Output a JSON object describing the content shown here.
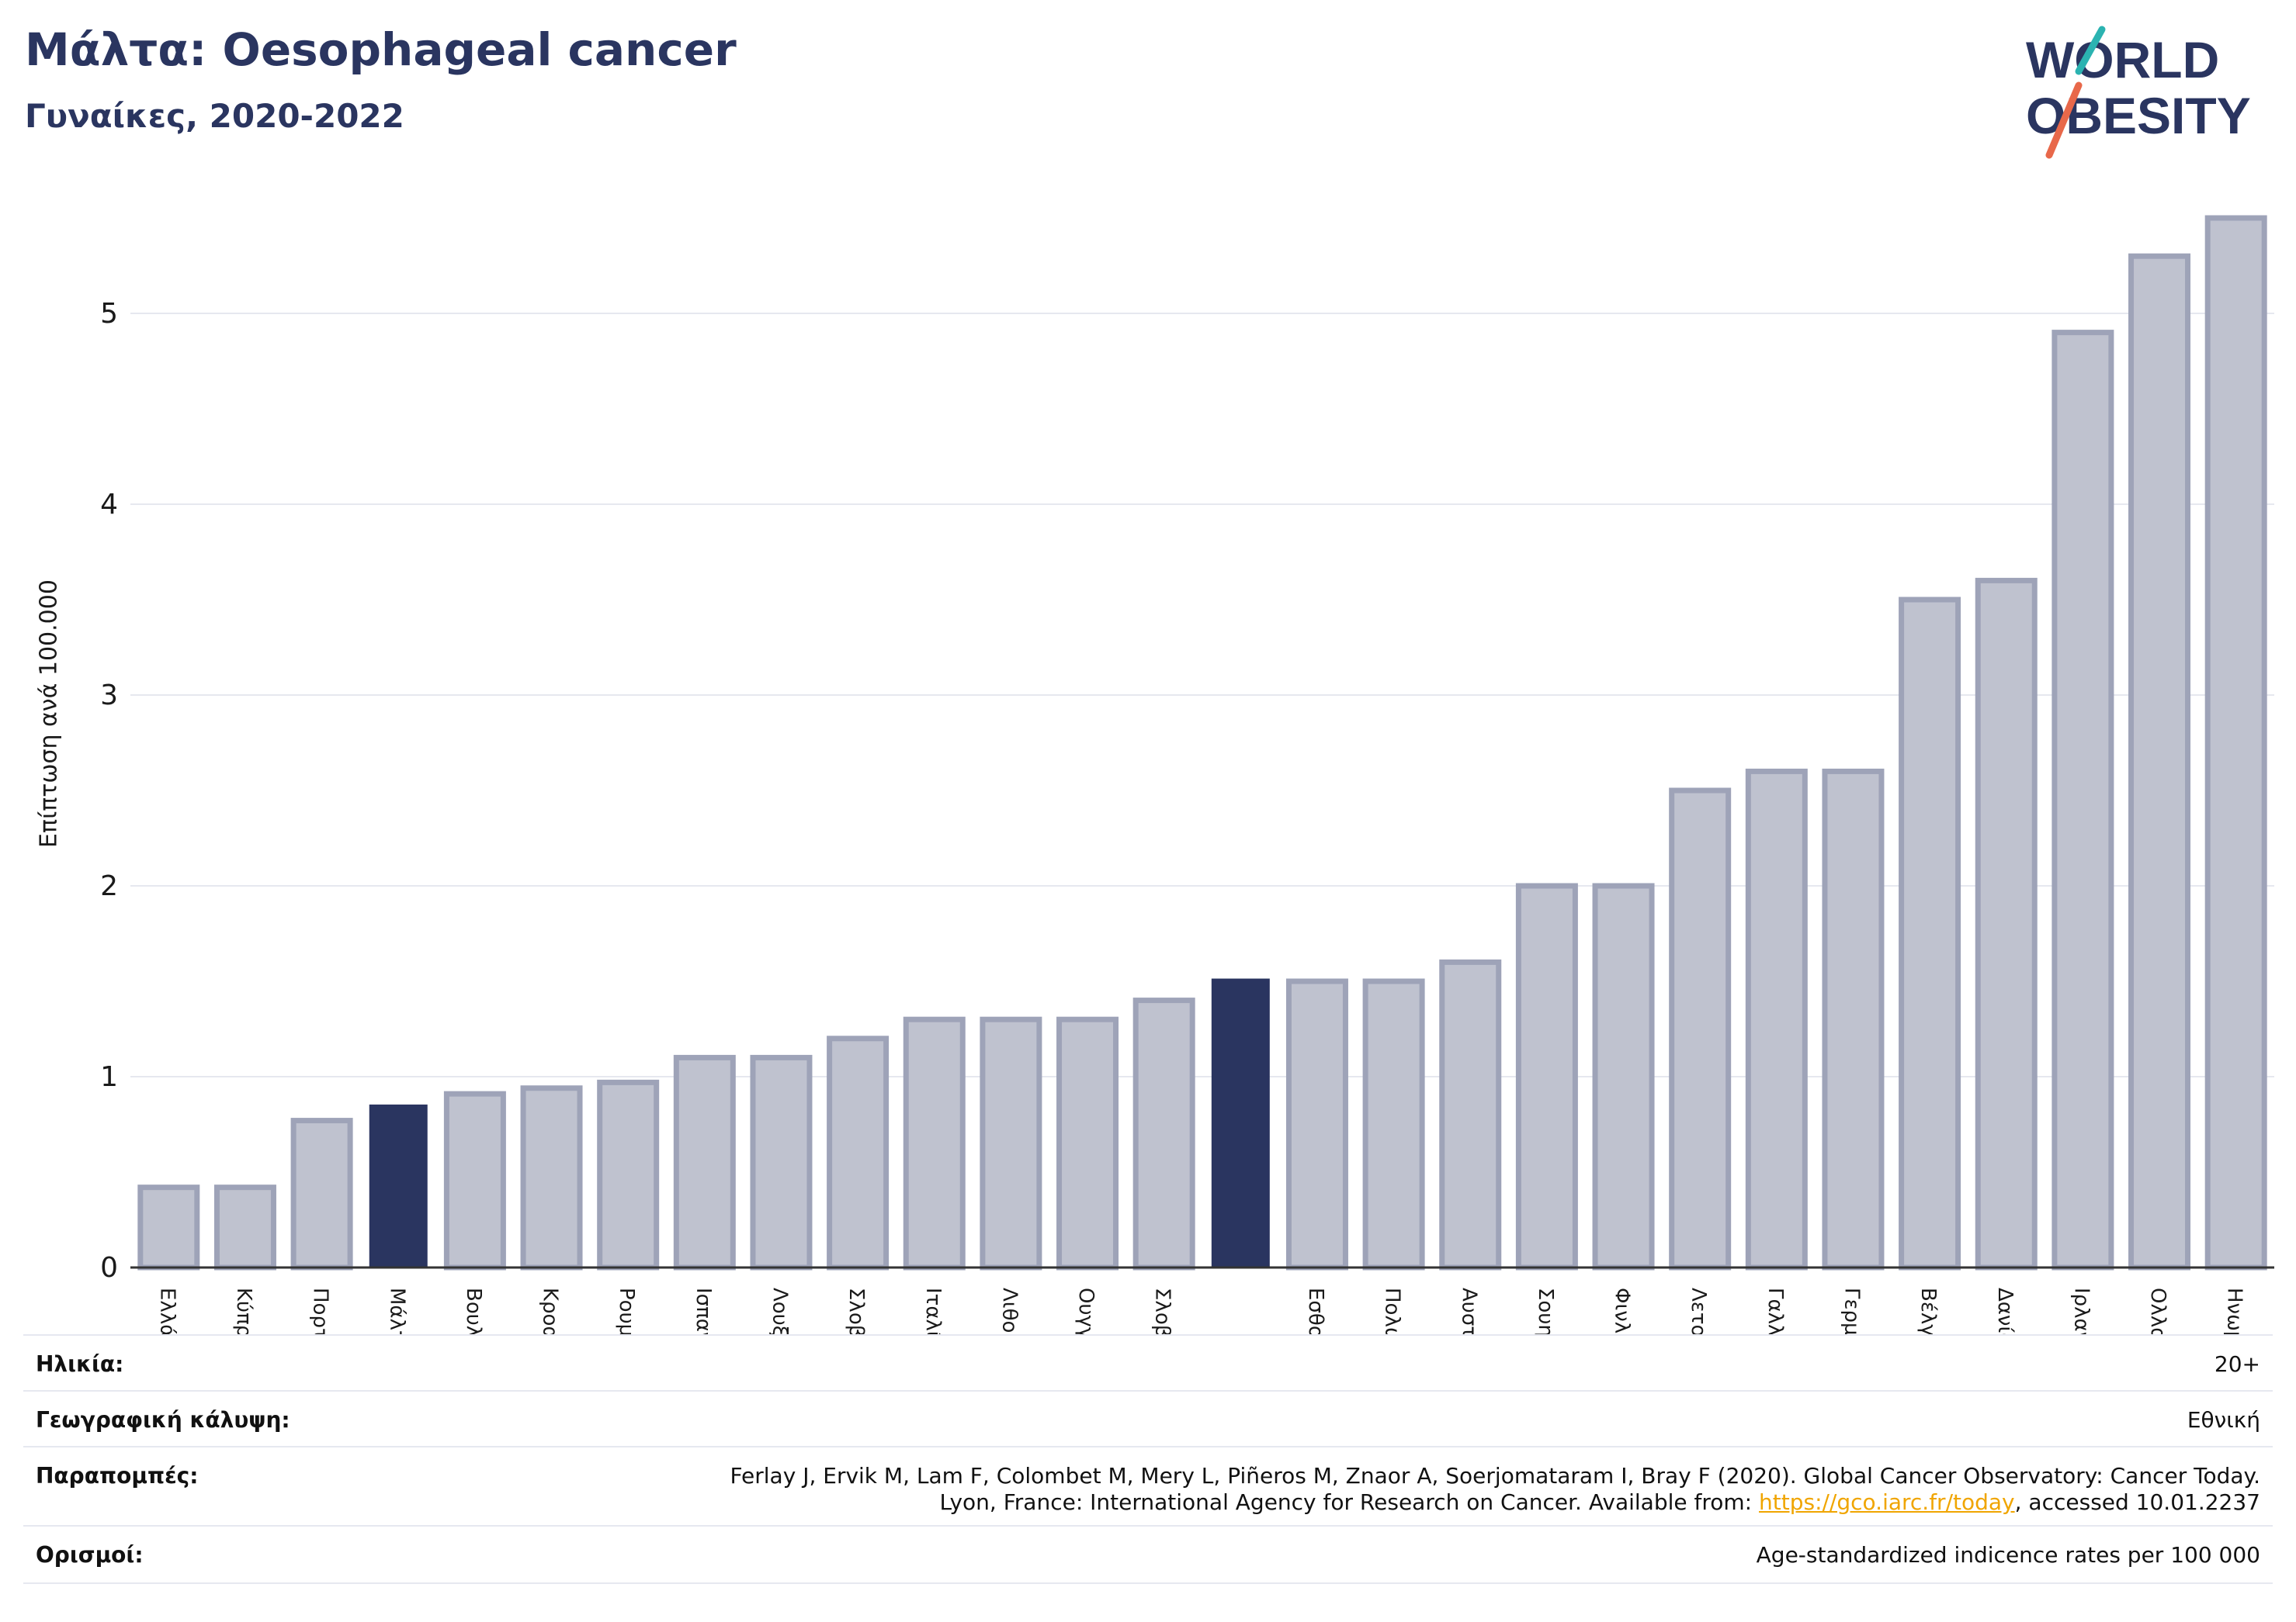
{
  "header": {
    "title": "Μάλτα: Oesophageal cancer",
    "subtitle": "Γυναίκες, 2020-2022"
  },
  "logo": {
    "line1": "WORLD",
    "line2": "OBESITY"
  },
  "colors": {
    "title": "#2a3560",
    "bar": "#bfc2cf",
    "bar_border": "#9ea3b8",
    "highlight": "#2a3560",
    "grid": "#e6e8ef",
    "link": "#f0a500",
    "logo_teal": "#2bb3b1",
    "logo_coral": "#e8684a"
  },
  "chart_data": {
    "type": "bar",
    "title": "Μάλτα: Oesophageal cancer",
    "subtitle": "Γυναίκες, 2020-2022",
    "ylabel": "Επίπτωση ανά 100.000",
    "ylim": [
      0,
      5.6
    ],
    "yticks": [
      0,
      1,
      2,
      3,
      4,
      5
    ],
    "grid": true,
    "categories": [
      "Ελλάδα",
      "Κύπρος",
      "Πορτογαλία",
      "Μάλτα",
      "Βουλγαρία",
      "Κροατία",
      "Ρουμανία",
      "Ισπανία",
      "Λουξεμβούργο",
      "Σλοβακία",
      "Ιταλία",
      "Λιθουανία",
      "Ουγγαρία",
      "Σλοβενία",
      "",
      "Εσθονία",
      "Πολωνία",
      "Αυστρία",
      "Σουηδία",
      "Φινλανδία",
      "Λετονία",
      "Γαλλία",
      "Γερμανία",
      "Βέλγιο",
      "Δανία",
      "Ιρλανδία",
      "Ολλανδία",
      "Ηνωμένο Βασίλειο"
    ],
    "values": [
      0.42,
      0.42,
      0.77,
      0.85,
      0.91,
      0.94,
      0.97,
      1.1,
      1.1,
      1.2,
      1.3,
      1.3,
      1.3,
      1.4,
      1.51,
      1.5,
      1.5,
      1.6,
      2.0,
      2.0,
      2.5,
      2.6,
      2.6,
      3.5,
      3.6,
      4.9,
      5.3,
      5.5
    ],
    "highlight": [
      3,
      14
    ]
  },
  "info": {
    "age_label": "Ηλικία:",
    "age_value": "20+",
    "coverage_label": "Γεωγραφική κάλυψη:",
    "coverage_value": "Εθνική",
    "refs_label": "Παραπομπές:",
    "refs_line1": "Ferlay J, Ervik M, Lam F, Colombet M, Mery L, Piñeros M, Znaor A, Soerjomataram I, Bray F (2020). Global Cancer Observatory: Cancer Today.",
    "refs_line2_pre": "Lyon, France: International Agency for Research on Cancer. Available from: ",
    "refs_link": "https://gco.iarc.fr/today",
    "refs_line2_post": ", accessed 10.01.2237",
    "defs_label": "Ορισμοί:",
    "defs_value": "Age-standardized indicence rates per 100 000"
  }
}
